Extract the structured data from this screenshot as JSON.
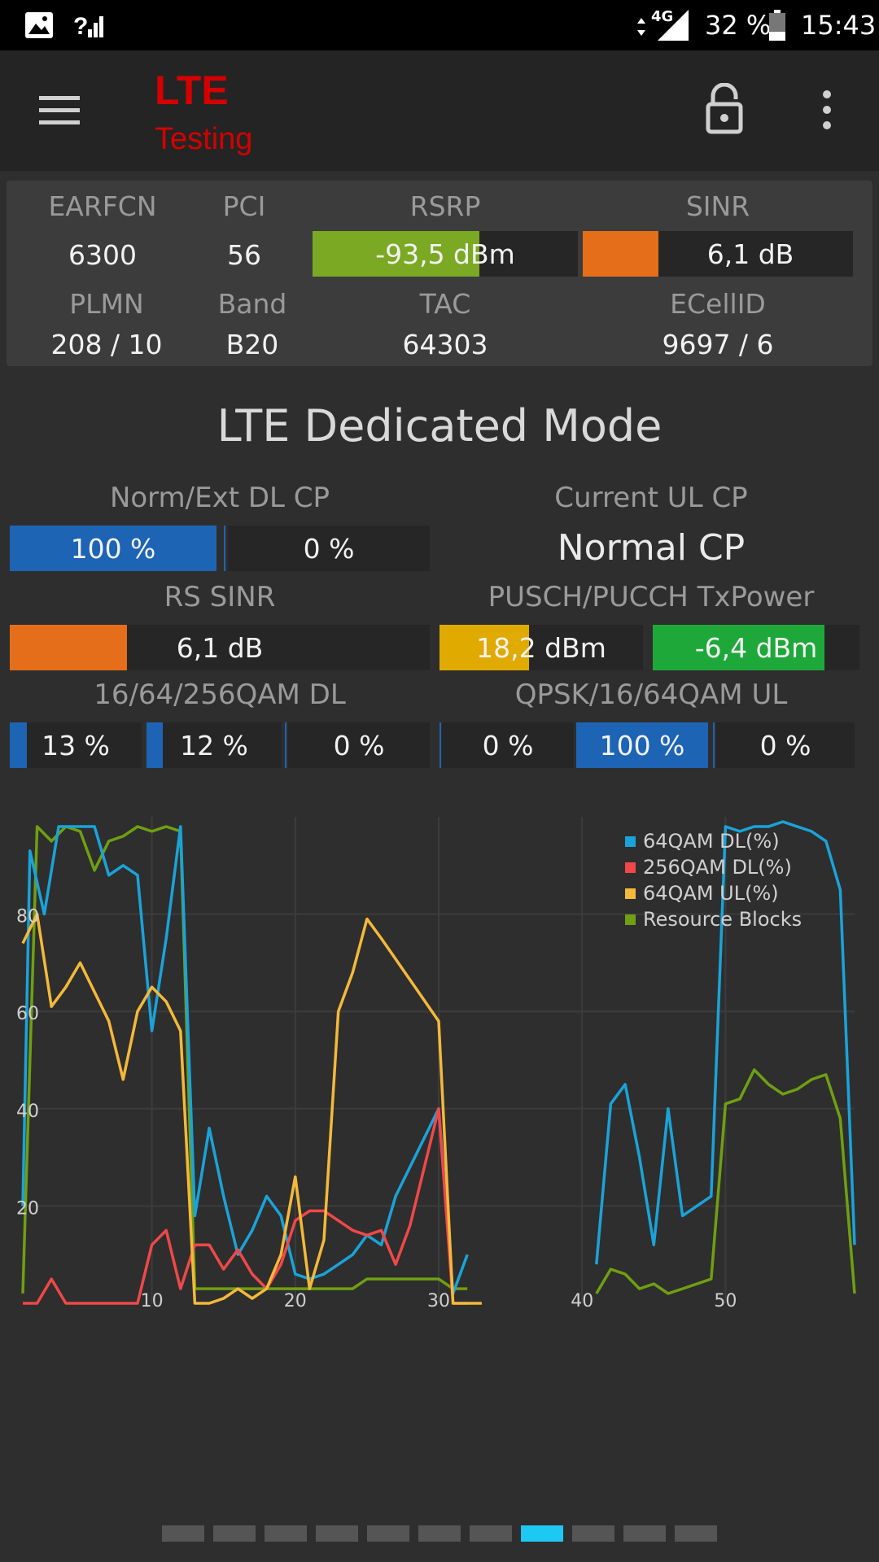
{
  "status_bar": {
    "network_label": "4G",
    "battery_percent": "32 %",
    "time": "15:43",
    "battery_level": 0.32
  },
  "app_bar": {
    "title_line1": "LTE",
    "title_line2": "Testing"
  },
  "cell_info": {
    "earfcn_label": "EARFCN",
    "earfcn": "6300",
    "pci_label": "PCI",
    "pci": "56",
    "rsrp_label": "RSRP",
    "rsrp": "-93,5 dBm",
    "rsrp_fill": 0.63,
    "sinr_label": "SINR",
    "sinr": "6,1 dB",
    "sinr_fill": 0.28,
    "plmn_label": "PLMN",
    "plmn": "208 / 10",
    "band_label": "Band",
    "band": "B20",
    "tac_label": "TAC",
    "tac": "64303",
    "ecellid_label": "ECellID",
    "ecellid": "9697 / 6"
  },
  "dedicated": {
    "title": "LTE Dedicated Mode",
    "dl_cp_label": "Norm/Ext DL CP",
    "dl_cp_normal": "100 %",
    "dl_cp_normal_fill": 1.0,
    "dl_cp_ext": "0 %",
    "dl_cp_ext_fill": 0,
    "ul_cp_label": "Current UL CP",
    "ul_cp": "Normal CP",
    "rs_sinr_label": "RS SINR",
    "rs_sinr": "6,1 dB",
    "rs_sinr_fill": 0.28,
    "txpower_label": "PUSCH/PUCCH TxPower",
    "pusch": "18,2 dBm",
    "pusch_fill": 0.44,
    "pucch": "-6,4 dBm",
    "pucch_fill": 0.83,
    "qam_dl_label": "16/64/256QAM DL",
    "qam_dl": [
      {
        "text": "13 %",
        "fill": 0.13
      },
      {
        "text": "12 %",
        "fill": 0.12
      },
      {
        "text": "0 %",
        "fill": 0
      }
    ],
    "qam_ul_label": "QPSK/16/64QAM UL",
    "qam_ul": [
      {
        "text": "0 %",
        "fill": 0
      },
      {
        "text": "100 %",
        "fill": 1.0
      },
      {
        "text": "0 %",
        "fill": 0
      }
    ]
  },
  "colors": {
    "blue": "#1e64b4",
    "orange": "#e56e1a",
    "green_rsrp": "#7ba923",
    "green_tx": "#1fa83a",
    "yellow": "#e1aa00",
    "series_64qam_dl": "#1aa3d9",
    "series_256qam_dl": "#f04848",
    "series_64qam_ul": "#f4b93a",
    "series_rb": "#6f9f12"
  },
  "chart_data": {
    "type": "line",
    "x_ticks": [
      "10",
      "20",
      "30",
      "40",
      "50"
    ],
    "y_ticks": [
      "20",
      "40",
      "60",
      "80"
    ],
    "xlim": [
      1,
      59
    ],
    "ylim": [
      0,
      100
    ],
    "grid": true,
    "legend_position": "top-right",
    "series": [
      {
        "name": "64QAM DL(%)",
        "points": [
          [
            1,
            20
          ],
          [
            1.5,
            93
          ],
          [
            2.5,
            80
          ],
          [
            3.5,
            98
          ],
          [
            5,
            98
          ],
          [
            6,
            98
          ],
          [
            7,
            88
          ],
          [
            8,
            90
          ],
          [
            9,
            88
          ],
          [
            10,
            56
          ],
          [
            11,
            75
          ],
          [
            12,
            98
          ],
          [
            13,
            18
          ],
          [
            14,
            36
          ],
          [
            15,
            22
          ],
          [
            16,
            10
          ],
          [
            17,
            15
          ],
          [
            18,
            22
          ],
          [
            19,
            18
          ],
          [
            20,
            6
          ],
          [
            21,
            5
          ],
          [
            22,
            6
          ],
          [
            23,
            8
          ],
          [
            24,
            10
          ],
          [
            25,
            14
          ],
          [
            26,
            12
          ],
          [
            27,
            22
          ],
          [
            30,
            40
          ],
          [
            31,
            2
          ],
          [
            32,
            10
          ],
          [
            41,
            8
          ],
          [
            42,
            41
          ],
          [
            43,
            45
          ],
          [
            44,
            30
          ],
          [
            45,
            12
          ],
          [
            46,
            40
          ],
          [
            47,
            18
          ],
          [
            48,
            20
          ],
          [
            49,
            22
          ],
          [
            50,
            98
          ],
          [
            51,
            97
          ],
          [
            52,
            98
          ],
          [
            53,
            98
          ],
          [
            54,
            99
          ],
          [
            55,
            98
          ],
          [
            56,
            97
          ],
          [
            57,
            95
          ],
          [
            58,
            85
          ],
          [
            59,
            12
          ]
        ]
      },
      {
        "name": "256QAM DL(%)",
        "points": [
          [
            1,
            0
          ],
          [
            2,
            0
          ],
          [
            3,
            5
          ],
          [
            4,
            0
          ],
          [
            8,
            0
          ],
          [
            9,
            0
          ],
          [
            10,
            12
          ],
          [
            11,
            15
          ],
          [
            12,
            3
          ],
          [
            13,
            12
          ],
          [
            14,
            12
          ],
          [
            15,
            7
          ],
          [
            16,
            11
          ],
          [
            17,
            6
          ],
          [
            18,
            3
          ],
          [
            19,
            8
          ],
          [
            20,
            17
          ],
          [
            21,
            19
          ],
          [
            22,
            19
          ],
          [
            23,
            17
          ],
          [
            24,
            15
          ],
          [
            25,
            14
          ],
          [
            26,
            15
          ],
          [
            27,
            8
          ],
          [
            28,
            16
          ],
          [
            29,
            28
          ],
          [
            30,
            40
          ],
          [
            31,
            0
          ],
          [
            32,
            0
          ]
        ]
      },
      {
        "name": "64QAM UL(%)",
        "points": [
          [
            1,
            74
          ],
          [
            2,
            80
          ],
          [
            3,
            61
          ],
          [
            4,
            65
          ],
          [
            5,
            70
          ],
          [
            6,
            64
          ],
          [
            7,
            58
          ],
          [
            8,
            46
          ],
          [
            9,
            60
          ],
          [
            10,
            65
          ],
          [
            11,
            62
          ],
          [
            12,
            56
          ],
          [
            13,
            0
          ],
          [
            14,
            0
          ],
          [
            15,
            1
          ],
          [
            16,
            3
          ],
          [
            17,
            1
          ],
          [
            18,
            3
          ],
          [
            19,
            10
          ],
          [
            20,
            26
          ],
          [
            21,
            3
          ],
          [
            22,
            13
          ],
          [
            23,
            60
          ],
          [
            24,
            68
          ],
          [
            25,
            79
          ],
          [
            26,
            75
          ],
          [
            30,
            58
          ],
          [
            31,
            0
          ],
          [
            33,
            0
          ],
          [
            41,
            0
          ],
          [
            59,
            0
          ]
        ]
      },
      {
        "name": "Resource Blocks",
        "points": [
          [
            1,
            2
          ],
          [
            2,
            98
          ],
          [
            3,
            95
          ],
          [
            4,
            98
          ],
          [
            5,
            97
          ],
          [
            6,
            89
          ],
          [
            7,
            95
          ],
          [
            8,
            96
          ],
          [
            9,
            98
          ],
          [
            10,
            97
          ],
          [
            11,
            98
          ],
          [
            12,
            97
          ],
          [
            13,
            3
          ],
          [
            14,
            3
          ],
          [
            15,
            3
          ],
          [
            16,
            3
          ],
          [
            17,
            3
          ],
          [
            18,
            3
          ],
          [
            19,
            3
          ],
          [
            20,
            3
          ],
          [
            21,
            3
          ],
          [
            22,
            3
          ],
          [
            23,
            3
          ],
          [
            24,
            3
          ],
          [
            25,
            5
          ],
          [
            26,
            5
          ],
          [
            27,
            5
          ],
          [
            28,
            5
          ],
          [
            29,
            5
          ],
          [
            30,
            5
          ],
          [
            31,
            3
          ],
          [
            32,
            3
          ],
          [
            41,
            2
          ],
          [
            42,
            7
          ],
          [
            43,
            6
          ],
          [
            44,
            3
          ],
          [
            45,
            4
          ],
          [
            46,
            2
          ],
          [
            47,
            3
          ],
          [
            48,
            4
          ],
          [
            49,
            5
          ],
          [
            50,
            41
          ],
          [
            51,
            42
          ],
          [
            52,
            48
          ],
          [
            53,
            45
          ],
          [
            54,
            43
          ],
          [
            55,
            44
          ],
          [
            56,
            46
          ],
          [
            57,
            47
          ],
          [
            58,
            38
          ],
          [
            59,
            2
          ]
        ]
      }
    ]
  },
  "pager": {
    "count": 11,
    "active_index": 7,
    "active_color": "#1dc9f2",
    "inactive_color": "#555555"
  }
}
